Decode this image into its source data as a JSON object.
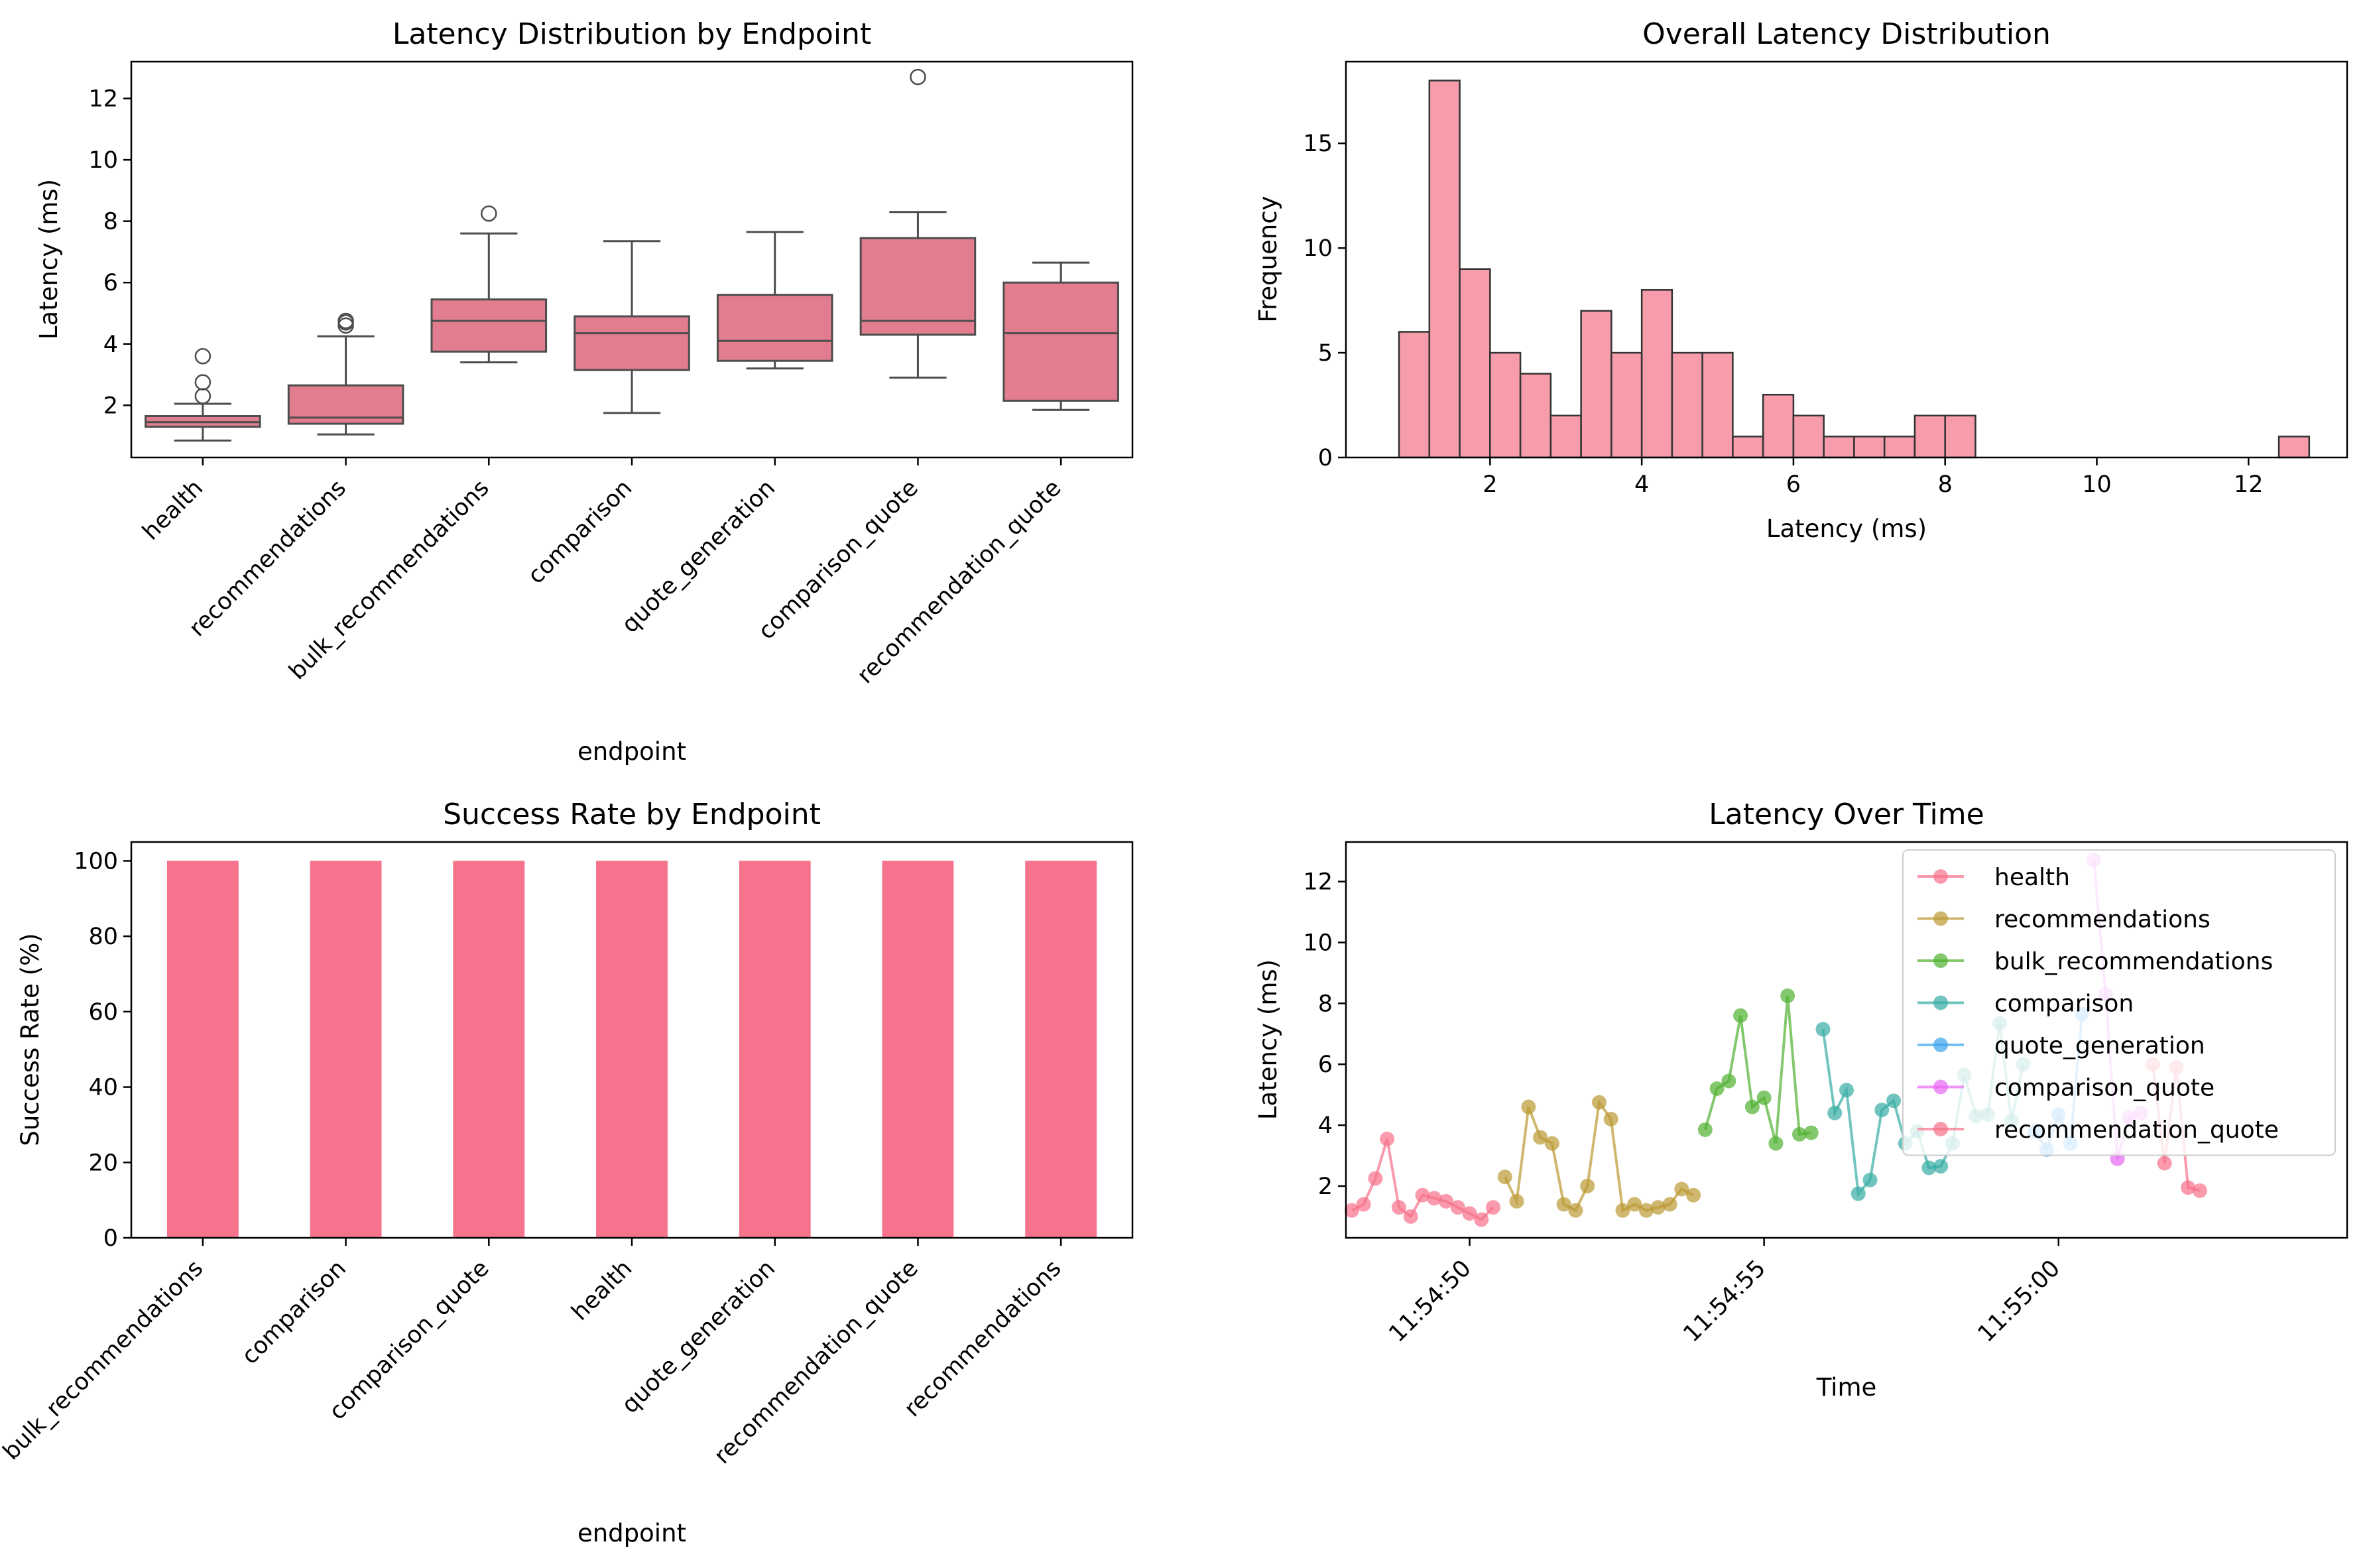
{
  "colors": {
    "box_fill": "#e27d8f",
    "box_edge": "#4d4d4d",
    "hist_fill": "#f69cab",
    "hist_edge": "#333333",
    "bar_fill": "#f5738c",
    "axis": "#000000"
  },
  "chart_data": [
    {
      "id": "box",
      "type": "box",
      "title": "Latency Distribution by Endpoint",
      "xlabel": "endpoint",
      "ylabel": "Latency (ms)",
      "ylim": [
        0.3,
        13.2
      ],
      "yticks": [
        2,
        4,
        6,
        8,
        10,
        12
      ],
      "categories": [
        "health",
        "recommendations",
        "bulk_recommendations",
        "comparison",
        "quote_generation",
        "comparison_quote",
        "recommendation_quote"
      ],
      "boxes": [
        {
          "whisker_low": 0.85,
          "q1": 1.3,
          "median": 1.45,
          "q3": 1.65,
          "whisker_high": 2.05,
          "outliers": [
            2.3,
            2.75,
            3.6
          ]
        },
        {
          "whisker_low": 1.05,
          "q1": 1.4,
          "median": 1.6,
          "q3": 2.65,
          "whisker_high": 4.25,
          "outliers": [
            4.6,
            4.7,
            4.75
          ]
        },
        {
          "whisker_low": 3.4,
          "q1": 3.75,
          "median": 4.75,
          "q3": 5.45,
          "whisker_high": 7.6,
          "outliers": [
            8.25
          ]
        },
        {
          "whisker_low": 1.75,
          "q1": 3.15,
          "median": 4.35,
          "q3": 4.9,
          "whisker_high": 7.35,
          "outliers": []
        },
        {
          "whisker_low": 3.2,
          "q1": 3.45,
          "median": 4.1,
          "q3": 5.6,
          "whisker_high": 7.65,
          "outliers": []
        },
        {
          "whisker_low": 2.9,
          "q1": 4.3,
          "median": 4.75,
          "q3": 7.45,
          "whisker_high": 8.3,
          "outliers": [
            12.7
          ]
        },
        {
          "whisker_low": 1.85,
          "q1": 2.15,
          "median": 4.35,
          "q3": 6.0,
          "whisker_high": 6.65,
          "outliers": []
        }
      ]
    },
    {
      "id": "hist",
      "type": "histogram",
      "title": "Overall Latency Distribution",
      "xlabel": "Latency (ms)",
      "ylabel": "Frequency",
      "xlim": [
        0.1,
        13.3
      ],
      "ylim": [
        0,
        18.9
      ],
      "xticks": [
        2,
        4,
        6,
        8,
        10,
        12
      ],
      "yticks": [
        0,
        5,
        10,
        15
      ],
      "bin_start": 0.8,
      "bin_width": 0.4,
      "counts": [
        6,
        18,
        9,
        5,
        4,
        2,
        7,
        5,
        8,
        5,
        5,
        1,
        3,
        2,
        1,
        1,
        1,
        2,
        2,
        0,
        0,
        0,
        0,
        0,
        0,
        0,
        0,
        0,
        0,
        1
      ]
    },
    {
      "id": "success",
      "type": "bar",
      "title": "Success Rate by Endpoint",
      "xlabel": "endpoint",
      "ylabel": "Success Rate (%)",
      "ylim": [
        0,
        105
      ],
      "yticks": [
        0,
        20,
        40,
        60,
        80,
        100
      ],
      "categories": [
        "bulk_recommendations",
        "comparison",
        "comparison_quote",
        "health",
        "quote_generation",
        "recommendation_quote",
        "recommendations"
      ],
      "values": [
        100,
        100,
        100,
        100,
        100,
        100,
        100
      ]
    },
    {
      "id": "time",
      "type": "line",
      "title": "Latency Over Time",
      "xlabel": "Time",
      "ylabel": "Latency (ms)",
      "xlim": [
        "11:54:47.9",
        "11:55:04.9"
      ],
      "ylim": [
        0.3,
        13.3
      ],
      "xticks": [
        "11:54:50",
        "11:54:55",
        "11:55:00"
      ],
      "yticks": [
        2,
        4,
        6,
        8,
        10,
        12
      ],
      "legend_position": "upper right",
      "series": [
        {
          "name": "health",
          "color": "#f77189",
          "x": [
            "11:54:48.0",
            "11:54:48.2",
            "11:54:48.4",
            "11:54:48.6",
            "11:54:48.8",
            "11:54:49.0",
            "11:54:49.2",
            "11:54:49.4",
            "11:54:49.6",
            "11:54:49.8",
            "11:54:50.0",
            "11:54:50.2",
            "11:54:50.4"
          ],
          "y": [
            1.2,
            1.4,
            2.25,
            3.55,
            1.3,
            1.0,
            1.7,
            1.6,
            1.5,
            1.3,
            1.1,
            0.9,
            1.3
          ]
        },
        {
          "name": "recommendations",
          "color": "#bb9832",
          "x": [
            "11:54:50.6",
            "11:54:50.8",
            "11:54:51.0",
            "11:54:51.2",
            "11:54:51.4",
            "11:54:51.6",
            "11:54:51.8",
            "11:54:52.0",
            "11:54:52.2",
            "11:54:52.4",
            "11:54:52.6",
            "11:54:52.8",
            "11:54:53.0",
            "11:54:53.2",
            "11:54:53.4",
            "11:54:53.6",
            "11:54:53.8"
          ],
          "y": [
            2.3,
            1.5,
            4.6,
            3.6,
            3.4,
            1.4,
            1.2,
            2.0,
            4.75,
            4.2,
            1.2,
            1.4,
            1.2,
            1.3,
            1.4,
            1.9,
            1.7
          ]
        },
        {
          "name": "bulk_recommendations",
          "color": "#50b131",
          "x": [
            "11:54:54.0",
            "11:54:54.2",
            "11:54:54.4",
            "11:54:54.6",
            "11:54:54.8",
            "11:54:55.0",
            "11:54:55.2",
            "11:54:55.4",
            "11:54:55.6",
            "11:54:55.8"
          ],
          "y": [
            3.85,
            5.2,
            5.45,
            7.6,
            4.6,
            4.9,
            3.4,
            8.25,
            3.7,
            3.75
          ]
        },
        {
          "name": "comparison",
          "color": "#36ada4",
          "x": [
            "11:54:56.0",
            "11:54:56.2",
            "11:54:56.4",
            "11:54:56.6",
            "11:54:56.8",
            "11:54:57.0",
            "11:54:57.2",
            "11:54:57.4",
            "11:54:57.6",
            "11:54:57.8",
            "11:54:58.0",
            "11:54:58.2",
            "11:54:58.4",
            "11:54:58.6",
            "11:54:58.8",
            "11:54:59.0",
            "11:54:59.2",
            "11:54:59.4"
          ],
          "y": [
            7.15,
            4.4,
            5.15,
            1.75,
            2.2,
            4.5,
            4.8,
            3.4,
            3.8,
            2.6,
            2.65,
            3.4,
            5.65,
            4.3,
            4.35,
            7.35,
            4.15,
            6.0
          ]
        },
        {
          "name": "quote_generation",
          "color": "#3ba3ec",
          "x": [
            "11:54:59.6",
            "11:54:59.8",
            "11:55:00.0",
            "11:55:00.2",
            "11:55:00.4"
          ],
          "y": [
            3.8,
            3.2,
            4.35,
            3.4,
            7.65
          ]
        },
        {
          "name": "comparison_quote",
          "color": "#e866f4",
          "x": [
            "11:55:00.6",
            "11:55:00.8",
            "11:55:01.0",
            "11:55:01.2",
            "11:55:01.4"
          ],
          "y": [
            12.7,
            8.3,
            2.9,
            4.25,
            4.4
          ]
        },
        {
          "name": "recommendation_quote",
          "color": "#f77189",
          "x": [
            "11:55:01.6",
            "11:55:01.8",
            "11:55:02.0",
            "11:55:02.2",
            "11:55:02.4"
          ],
          "y": [
            6.0,
            2.75,
            5.9,
            1.95,
            1.85
          ]
        }
      ]
    }
  ]
}
